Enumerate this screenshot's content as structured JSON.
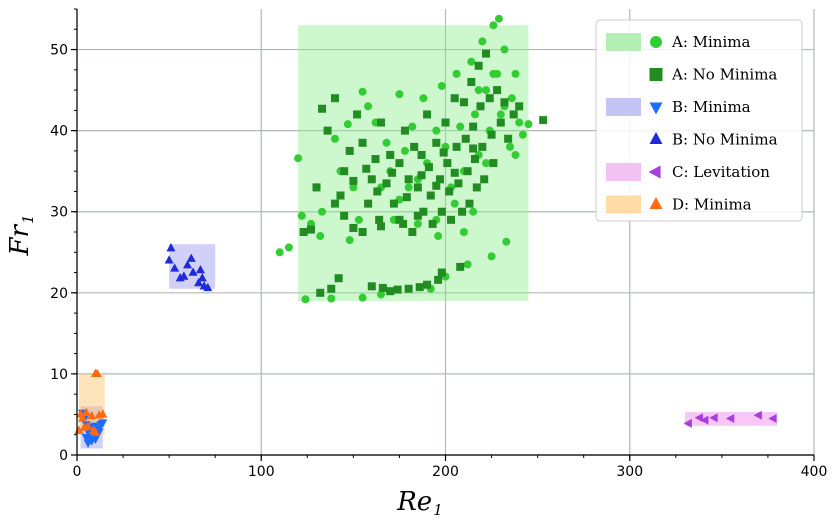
{
  "chart_data": {
    "type": "scatter",
    "xlabel": {
      "main": "Re",
      "sub": "1"
    },
    "ylabel": {
      "main": "Fr",
      "sub": "1"
    },
    "xlim": [
      0,
      400
    ],
    "ylim": [
      0,
      55
    ],
    "xticks": [
      0,
      100,
      200,
      300,
      400
    ],
    "yticks": [
      0,
      10,
      20,
      30,
      40,
      50
    ],
    "grid": true,
    "legend_position": "top-right",
    "regions": [
      {
        "series": "A",
        "x": [
          120,
          245
        ],
        "y": [
          19,
          53
        ],
        "color": "#90ee90"
      },
      {
        "series": "B",
        "x": [
          50,
          75
        ],
        "y": [
          20.5,
          26
        ],
        "color": "#9999ee"
      },
      {
        "series": "B",
        "x": [
          2,
          14
        ],
        "y": [
          0.8,
          6
        ],
        "color": "#9999ee"
      },
      {
        "series": "C",
        "x": [
          330,
          380
        ],
        "y": [
          3.6,
          5.3
        ],
        "color": "#ee82ee"
      },
      {
        "series": "D",
        "x": [
          1,
          15
        ],
        "y": [
          2.5,
          10
        ],
        "color": "#ffc266"
      }
    ],
    "series": [
      {
        "name": "A: Minima",
        "marker": "circle",
        "color": "#32cd32",
        "legend_patch": "#b4f0b4",
        "points": [
          [
            110,
            25
          ],
          [
            115,
            25.6
          ],
          [
            120,
            36.6
          ],
          [
            122,
            29.5
          ],
          [
            124,
            19.2
          ],
          [
            127,
            28.5
          ],
          [
            130,
            33
          ],
          [
            133,
            30
          ],
          [
            138,
            19.3
          ],
          [
            140,
            39
          ],
          [
            143,
            35
          ],
          [
            147,
            40.8
          ],
          [
            150,
            33
          ],
          [
            153,
            29
          ],
          [
            155,
            19.4
          ],
          [
            155,
            44.8
          ],
          [
            158,
            43
          ],
          [
            162,
            41
          ],
          [
            165,
            33
          ],
          [
            165,
            19.8
          ],
          [
            170,
            35
          ],
          [
            172,
            29
          ],
          [
            175,
            44.5
          ],
          [
            178,
            37.5
          ],
          [
            182,
            40.5
          ],
          [
            185,
            34
          ],
          [
            188,
            44
          ],
          [
            190,
            36
          ],
          [
            192,
            20.5
          ],
          [
            195,
            40
          ],
          [
            198,
            45.5
          ],
          [
            200,
            38
          ],
          [
            200,
            22
          ],
          [
            203,
            33
          ],
          [
            206,
            47
          ],
          [
            208,
            40.5
          ],
          [
            210,
            35
          ],
          [
            212,
            23.5
          ],
          [
            214,
            48.5
          ],
          [
            216,
            42
          ],
          [
            218,
            37
          ],
          [
            220,
            51
          ],
          [
            222,
            45
          ],
          [
            224,
            40
          ],
          [
            225,
            24.5
          ],
          [
            226,
            53
          ],
          [
            228,
            47
          ],
          [
            229,
            53.8
          ],
          [
            230,
            42
          ],
          [
            232,
            50
          ],
          [
            233,
            26.3
          ],
          [
            235,
            38
          ],
          [
            236,
            44
          ],
          [
            238,
            47
          ],
          [
            240,
            41
          ],
          [
            242,
            39.5
          ],
          [
            245,
            40.8
          ],
          [
            215,
            30
          ],
          [
            205,
            31
          ],
          [
            195,
            29
          ],
          [
            185,
            28.5
          ],
          [
            175,
            31.5
          ],
          [
            168,
            38.5
          ],
          [
            162,
            36.5
          ],
          [
            148,
            26.5
          ],
          [
            132,
            27
          ],
          [
            218,
            45
          ],
          [
            226,
            47
          ],
          [
            222,
            36
          ],
          [
            232,
            43
          ],
          [
            238,
            37
          ],
          [
            210,
            27.5
          ],
          [
            196,
            27
          ],
          [
            180,
            33
          ]
        ]
      },
      {
        "name": "A: No Minima",
        "marker": "square",
        "color": "#228b22",
        "legend_patch": "none",
        "points": [
          [
            123,
            27.5
          ],
          [
            127,
            27.8
          ],
          [
            130,
            33
          ],
          [
            132,
            20
          ],
          [
            133,
            42.7
          ],
          [
            136,
            40
          ],
          [
            138,
            20.5
          ],
          [
            140,
            44
          ],
          [
            142,
            21.8
          ],
          [
            143,
            32
          ],
          [
            145,
            35
          ],
          [
            148,
            37.5
          ],
          [
            150,
            28
          ],
          [
            152,
            42
          ],
          [
            155,
            38.5
          ],
          [
            158,
            31
          ],
          [
            160,
            34
          ],
          [
            162,
            36.5
          ],
          [
            164,
            29
          ],
          [
            165,
            41
          ],
          [
            166,
            20.6
          ],
          [
            168,
            33.5
          ],
          [
            170,
            37
          ],
          [
            172,
            31
          ],
          [
            174,
            20.4
          ],
          [
            175,
            36
          ],
          [
            177,
            28.5
          ],
          [
            178,
            40
          ],
          [
            180,
            34
          ],
          [
            182,
            27.5
          ],
          [
            183,
            38
          ],
          [
            185,
            33
          ],
          [
            186,
            20.7
          ],
          [
            187,
            37
          ],
          [
            188,
            30
          ],
          [
            190,
            42
          ],
          [
            191,
            35.5
          ],
          [
            192,
            32
          ],
          [
            193,
            28.5
          ],
          [
            195,
            38.5
          ],
          [
            196,
            21.6
          ],
          [
            197,
            34
          ],
          [
            198,
            30
          ],
          [
            200,
            41
          ],
          [
            201,
            36
          ],
          [
            202,
            32.5
          ],
          [
            203,
            29
          ],
          [
            205,
            44
          ],
          [
            206,
            38
          ],
          [
            207,
            33.5
          ],
          [
            208,
            23.2
          ],
          [
            209,
            30
          ],
          [
            210,
            43.5
          ],
          [
            211,
            39
          ],
          [
            212,
            35
          ],
          [
            213,
            31
          ],
          [
            214,
            46
          ],
          [
            215,
            40.5
          ],
          [
            216,
            36.5
          ],
          [
            217,
            33
          ],
          [
            218,
            48
          ],
          [
            219,
            43
          ],
          [
            220,
            38
          ],
          [
            221,
            34
          ],
          [
            222,
            49.5
          ],
          [
            224,
            44
          ],
          [
            225,
            39.5
          ],
          [
            226,
            36
          ],
          [
            228,
            45
          ],
          [
            230,
            41
          ],
          [
            232,
            43.5
          ],
          [
            234,
            39
          ],
          [
            237,
            42
          ],
          [
            240,
            43
          ],
          [
            253,
            41.3
          ],
          [
            160,
            20.8
          ],
          [
            170,
            20.2
          ],
          [
            180,
            20.5
          ],
          [
            190,
            21
          ],
          [
            198,
            22.5
          ],
          [
            140,
            31
          ],
          [
            145,
            29.5
          ],
          [
            155,
            27.5
          ],
          [
            165,
            28.2
          ],
          [
            175,
            29
          ],
          [
            185,
            29.5
          ],
          [
            195,
            33.2
          ],
          [
            205,
            34.8
          ],
          [
            215,
            37.8
          ],
          [
            150,
            33.8
          ],
          [
            157,
            35.3
          ],
          [
            163,
            32.5
          ],
          [
            171,
            34.8
          ],
          [
            179,
            31.8
          ],
          [
            187,
            34.5
          ],
          [
            199,
            37.3
          ]
        ]
      },
      {
        "name": "B: Minima",
        "marker": "triangle-down",
        "color": "#1e6bff",
        "legend_patch": "#c4c4f5",
        "points": [
          [
            3,
            5.2
          ],
          [
            4,
            4.5
          ],
          [
            5,
            3.8
          ],
          [
            5,
            2.2
          ],
          [
            6,
            1.5
          ],
          [
            6,
            3
          ],
          [
            7,
            2.5
          ],
          [
            8,
            1.8
          ],
          [
            8,
            3.5
          ],
          [
            9,
            2.8
          ],
          [
            10,
            2
          ],
          [
            10,
            3.6
          ],
          [
            11,
            3.2
          ],
          [
            12,
            2.9
          ],
          [
            13,
            3.8
          ],
          [
            14,
            4
          ]
        ]
      },
      {
        "name": "B: No Minima",
        "marker": "triangle-up",
        "color": "#1f2bd6",
        "legend_patch": "none",
        "points": [
          [
            50,
            24
          ],
          [
            51,
            25.5
          ],
          [
            53,
            23
          ],
          [
            56,
            21.8
          ],
          [
            58,
            22
          ],
          [
            60,
            23.4
          ],
          [
            62,
            24.2
          ],
          [
            63,
            22.5
          ],
          [
            66,
            21.2
          ],
          [
            67,
            22.8
          ],
          [
            68,
            21.8
          ],
          [
            69,
            20.8
          ],
          [
            71,
            20.6
          ]
        ]
      },
      {
        "name": "C: Levitation",
        "marker": "triangle-left",
        "color": "#a83de0",
        "legend_patch": "#f2c2f2",
        "points": [
          [
            332,
            3.9
          ],
          [
            338,
            4.6
          ],
          [
            341,
            4.3
          ],
          [
            346,
            4.6
          ],
          [
            355,
            4.5
          ],
          [
            370,
            4.9
          ],
          [
            378,
            4.5
          ]
        ]
      },
      {
        "name": "D: Minima",
        "marker": "triangle-up",
        "color": "#ff6a10",
        "legend_patch": "#ffdba6",
        "points": [
          [
            1,
            3
          ],
          [
            2,
            5
          ],
          [
            3,
            4.5
          ],
          [
            4,
            3.4
          ],
          [
            5,
            5.2
          ],
          [
            6,
            3.5
          ],
          [
            8,
            4.8
          ],
          [
            9,
            3
          ],
          [
            10,
            10
          ],
          [
            10,
            2.8
          ],
          [
            11,
            10
          ],
          [
            12,
            4.9
          ],
          [
            14,
            5
          ]
        ]
      }
    ]
  }
}
